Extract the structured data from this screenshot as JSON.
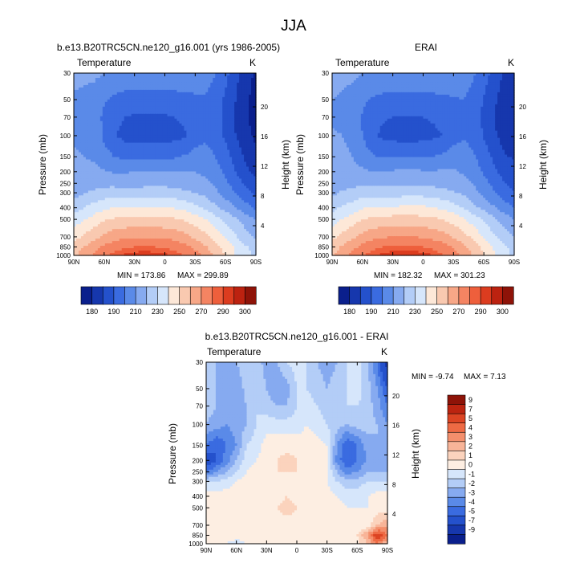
{
  "page_title": "JJA",
  "colors": {
    "main_scale": [
      "#0a1f8c",
      "#1637ad",
      "#2451cc",
      "#3a6be0",
      "#5a8ae8",
      "#86aaf0",
      "#b3cdf7",
      "#d6e6fb",
      "#fde8d8",
      "#f9c9b0",
      "#f7a787",
      "#f48462",
      "#ee5f3c",
      "#dc3c1f",
      "#bc2210",
      "#8e1308"
    ],
    "diff_scale": [
      "#0a1f8c",
      "#1637ad",
      "#2451cc",
      "#3a6be0",
      "#5a8ae8",
      "#86aaf0",
      "#b3cdf7",
      "#d6e6fb",
      "#fdeee2",
      "#fbd3bd",
      "#f8b498",
      "#f48f6c",
      "#ee6a44",
      "#dc4423",
      "#bc2410",
      "#8e1308"
    ]
  },
  "chart_data": [
    {
      "type": "heatmap",
      "id": "model",
      "title": "b.e13.B20TRC5CN.ne120_g16.001 (yrs 1986-2005)",
      "variable": "Temperature",
      "units": "K",
      "xlabel": "",
      "ylabel": "Pressure (mb)",
      "ylabel_right": "Height (km)",
      "x_ticks": [
        "90N",
        "60N",
        "30N",
        "0",
        "30S",
        "60S",
        "90S"
      ],
      "y_ticks": [
        30,
        50,
        70,
        100,
        150,
        200,
        250,
        300,
        400,
        500,
        700,
        850,
        1000
      ],
      "height_ticks": [
        20,
        16,
        12,
        8,
        4
      ],
      "min_label": "MIN = 173.86",
      "max_label": "MAX = 299.89",
      "colorbar_levels": [
        180,
        190,
        210,
        230,
        250,
        270,
        290,
        300
      ],
      "lat": [
        90,
        80,
        70,
        60,
        50,
        40,
        30,
        20,
        10,
        0,
        -10,
        -20,
        -30,
        -40,
        -50,
        -60,
        -70,
        -80,
        -90
      ],
      "pressure": [
        30,
        50,
        70,
        100,
        150,
        200,
        250,
        300,
        400,
        500,
        700,
        850,
        1000
      ],
      "values": [
        [
          222,
          222,
          222,
          220,
          219,
          218,
          218,
          218,
          218,
          218,
          218,
          218,
          217,
          215,
          210,
          203,
          193,
          185,
          178
        ],
        [
          219,
          218,
          216,
          211,
          208,
          206,
          205,
          205,
          205,
          205,
          206,
          207,
          208,
          209,
          205,
          198,
          190,
          182,
          176
        ],
        [
          218,
          217,
          215,
          208,
          203,
          200,
          199,
          199,
          199,
          199,
          200,
          202,
          205,
          207,
          204,
          197,
          189,
          181,
          176
        ],
        [
          219,
          218,
          216,
          208,
          201,
          197,
          196,
          195,
          195,
          196,
          197,
          199,
          205,
          208,
          205,
          198,
          190,
          183,
          178
        ],
        [
          221,
          220,
          219,
          214,
          210,
          208,
          208,
          208,
          208,
          208,
          209,
          211,
          214,
          214,
          210,
          204,
          196,
          188,
          183
        ],
        [
          223,
          222,
          222,
          221,
          219,
          219,
          220,
          221,
          221,
          220,
          220,
          220,
          220,
          218,
          214,
          208,
          200,
          192,
          187
        ],
        [
          224,
          225,
          226,
          227,
          227,
          226,
          226,
          227,
          227,
          227,
          226,
          225,
          224,
          222,
          218,
          212,
          205,
          198,
          192
        ],
        [
          226,
          229,
          232,
          234,
          235,
          234,
          234,
          235,
          235,
          235,
          234,
          232,
          230,
          227,
          222,
          216,
          210,
          203,
          197
        ],
        [
          236,
          240,
          244,
          248,
          250,
          250,
          250,
          251,
          251,
          251,
          249,
          247,
          243,
          238,
          232,
          226,
          220,
          214,
          208
        ],
        [
          244,
          249,
          254,
          259,
          261,
          262,
          263,
          263,
          263,
          262,
          261,
          259,
          255,
          250,
          244,
          238,
          231,
          225,
          219
        ],
        [
          256,
          262,
          267,
          272,
          276,
          278,
          279,
          279,
          279,
          278,
          276,
          273,
          268,
          263,
          256,
          248,
          241,
          234,
          229
        ],
        [
          264,
          270,
          276,
          282,
          286,
          289,
          290,
          291,
          290,
          289,
          287,
          283,
          278,
          271,
          264,
          256,
          248,
          241,
          236
        ],
        [
          268,
          275,
          282,
          288,
          293,
          296,
          298,
          299,
          298,
          297,
          294,
          289,
          284,
          277,
          268,
          259,
          250,
          243,
          238
        ]
      ]
    },
    {
      "type": "heatmap",
      "id": "obs",
      "title": "ERAI",
      "variable": "Temperature",
      "units": "K",
      "xlabel": "",
      "ylabel": "Pressure (mb)",
      "ylabel_right": "Height (km)",
      "x_ticks": [
        "90N",
        "60N",
        "30N",
        "0",
        "30S",
        "60S",
        "90S"
      ],
      "y_ticks": [
        30,
        50,
        70,
        100,
        150,
        200,
        250,
        300,
        400,
        500,
        700,
        850,
        1000
      ],
      "height_ticks": [
        20,
        16,
        12,
        8,
        4
      ],
      "min_label": "MIN = 182.32",
      "max_label": "MAX = 301.23",
      "colorbar_levels": [
        180,
        190,
        210,
        230,
        250,
        270,
        290,
        300
      ],
      "lat": [
        90,
        80,
        70,
        60,
        50,
        40,
        30,
        20,
        10,
        0,
        -10,
        -20,
        -30,
        -40,
        -50,
        -60,
        -70,
        -80,
        -90
      ],
      "pressure": [
        30,
        50,
        70,
        100,
        150,
        200,
        250,
        300,
        400,
        500,
        700,
        850,
        1000
      ],
      "values": [
        [
          223,
          222,
          222,
          220,
          219,
          219,
          219,
          219,
          219,
          219,
          219,
          219,
          218,
          216,
          211,
          205,
          196,
          189,
          183
        ],
        [
          220,
          219,
          217,
          212,
          209,
          207,
          206,
          206,
          206,
          206,
          207,
          208,
          209,
          210,
          206,
          199,
          192,
          185,
          181
        ],
        [
          219,
          218,
          216,
          209,
          204,
          201,
          200,
          200,
          200,
          200,
          201,
          203,
          206,
          208,
          205,
          198,
          190,
          184,
          182
        ],
        [
          221,
          220,
          218,
          210,
          202,
          198,
          197,
          196,
          196,
          197,
          198,
          200,
          206,
          209,
          206,
          199,
          192,
          186,
          184
        ],
        [
          224,
          222,
          220,
          215,
          211,
          209,
          209,
          209,
          209,
          209,
          210,
          212,
          215,
          215,
          211,
          205,
          198,
          191,
          189
        ],
        [
          226,
          225,
          223,
          222,
          220,
          220,
          221,
          222,
          222,
          221,
          221,
          221,
          221,
          219,
          215,
          209,
          202,
          196,
          193
        ],
        [
          227,
          227,
          227,
          228,
          228,
          227,
          227,
          228,
          228,
          228,
          227,
          226,
          225,
          223,
          219,
          213,
          207,
          201,
          197
        ],
        [
          228,
          231,
          233,
          235,
          236,
          235,
          235,
          236,
          236,
          236,
          235,
          233,
          231,
          228,
          223,
          217,
          211,
          205,
          200
        ],
        [
          237,
          241,
          245,
          249,
          251,
          251,
          251,
          252,
          252,
          252,
          250,
          248,
          244,
          239,
          233,
          227,
          221,
          215,
          209
        ],
        [
          245,
          250,
          255,
          260,
          262,
          263,
          264,
          264,
          264,
          263,
          262,
          260,
          256,
          251,
          245,
          239,
          232,
          226,
          220
        ],
        [
          257,
          263,
          268,
          273,
          277,
          279,
          280,
          280,
          280,
          279,
          277,
          274,
          269,
          264,
          257,
          249,
          242,
          235,
          229
        ],
        [
          265,
          271,
          277,
          283,
          287,
          290,
          291,
          292,
          291,
          290,
          288,
          284,
          279,
          272,
          265,
          257,
          249,
          242,
          236
        ],
        [
          269,
          276,
          283,
          289,
          294,
          297,
          299,
          300,
          299,
          298,
          295,
          290,
          285,
          278,
          269,
          260,
          251,
          244,
          238
        ]
      ]
    },
    {
      "type": "heatmap",
      "id": "diff",
      "title": "b.e13.B20TRC5CN.ne120_g16.001 - ERAI",
      "variable": "Temperature",
      "units": "K",
      "xlabel": "",
      "ylabel": "Pressure (mb)",
      "ylabel_right": "Height (km)",
      "x_ticks": [
        "90N",
        "60N",
        "30N",
        "0",
        "30S",
        "60S",
        "90S"
      ],
      "y_ticks": [
        30,
        50,
        70,
        100,
        150,
        200,
        250,
        300,
        400,
        500,
        700,
        850,
        1000
      ],
      "height_ticks": [
        20,
        16,
        12,
        8,
        4
      ],
      "min_label": "MIN =  -9.74",
      "max_label": "MAX =   7.13",
      "colorbar_levels": [
        9,
        7,
        5,
        4,
        3,
        2,
        1,
        0,
        -1,
        -2,
        -3,
        -4,
        -5,
        -7,
        -9
      ],
      "lat": [
        90,
        80,
        70,
        60,
        50,
        40,
        30,
        20,
        10,
        0,
        -10,
        -20,
        -30,
        -40,
        -50,
        -60,
        -70,
        -80,
        -90
      ],
      "pressure": [
        30,
        50,
        70,
        100,
        150,
        200,
        250,
        300,
        400,
        500,
        700,
        850,
        1000
      ],
      "values": [
        [
          -1,
          -2,
          -3,
          -2,
          -1,
          -1.5,
          -2.5,
          -2,
          -1,
          -0.5,
          -1,
          -2,
          -2.5,
          -2,
          -1,
          -0.5,
          -2,
          -4,
          -8
        ],
        [
          -1,
          -2,
          -2.5,
          -3,
          -1.5,
          -1,
          -2,
          -3,
          -2.5,
          -1,
          -1,
          -1.5,
          -2,
          -1.5,
          -1,
          -0.5,
          -1.5,
          -3,
          -5
        ],
        [
          -1.5,
          -2,
          -2.5,
          -3,
          -2,
          -1,
          -1.5,
          -2,
          -2,
          -1,
          -0.5,
          -1,
          -1.5,
          -1,
          -1,
          -1,
          -1.5,
          -2.5,
          -4
        ],
        [
          -2,
          -2.5,
          -3,
          -2.5,
          -2,
          -1,
          -0.5,
          -0.5,
          -0.5,
          -0.5,
          0,
          -0.5,
          -1,
          -1.5,
          -2,
          -1.5,
          -1.5,
          -2,
          -3
        ],
        [
          -4,
          -5,
          -4,
          -3,
          -1,
          -0.5,
          0.5,
          0.5,
          0.5,
          0.5,
          0.5,
          0.5,
          0,
          -3,
          -5,
          -4,
          -2.5,
          -2,
          -2.5
        ],
        [
          -6,
          -5,
          -3.5,
          -2,
          -0.5,
          0,
          0.5,
          1,
          1.5,
          1,
          0.5,
          0.5,
          0,
          -3.5,
          -5,
          -4,
          -3,
          -2.5,
          -2.5
        ],
        [
          -4,
          -3,
          -2,
          -1,
          0,
          0.5,
          0.5,
          1,
          1,
          1,
          0.5,
          0.5,
          0,
          -2,
          -3.5,
          -3,
          -2,
          -2,
          -2
        ],
        [
          -1,
          -1,
          -0.5,
          0,
          0.5,
          0.5,
          0.5,
          0.5,
          0.5,
          0.5,
          0.5,
          0.5,
          0,
          -1,
          -1.5,
          -1.5,
          -1,
          -1,
          -1
        ],
        [
          0.5,
          0.5,
          0.5,
          0.5,
          0.5,
          0,
          0.5,
          0.5,
          1,
          0.5,
          0.5,
          0.5,
          0.5,
          0,
          -0.5,
          -0.5,
          0,
          0.5,
          0.5
        ],
        [
          0.5,
          0.5,
          0.5,
          0.5,
          0.5,
          0.5,
          0.5,
          1,
          1.5,
          1,
          0.5,
          0.5,
          0.5,
          0.5,
          0,
          0,
          0,
          0.5,
          0.5
        ],
        [
          0.5,
          0.5,
          0.5,
          0.5,
          0.5,
          0.5,
          0.5,
          0.5,
          0.5,
          0.5,
          0.5,
          0.5,
          0.5,
          0,
          0,
          0,
          0.5,
          2,
          3
        ],
        [
          0.5,
          0.5,
          0.5,
          0.5,
          0.5,
          0.5,
          0.5,
          0.5,
          0.5,
          0.5,
          0.5,
          0.5,
          0,
          0,
          0.5,
          1,
          3,
          6,
          4
        ],
        [
          0.5,
          0,
          0,
          -0.5,
          0,
          0.5,
          0.5,
          0,
          0,
          0,
          0,
          0,
          0,
          0,
          0,
          0.5,
          2,
          4,
          2
        ]
      ]
    }
  ]
}
